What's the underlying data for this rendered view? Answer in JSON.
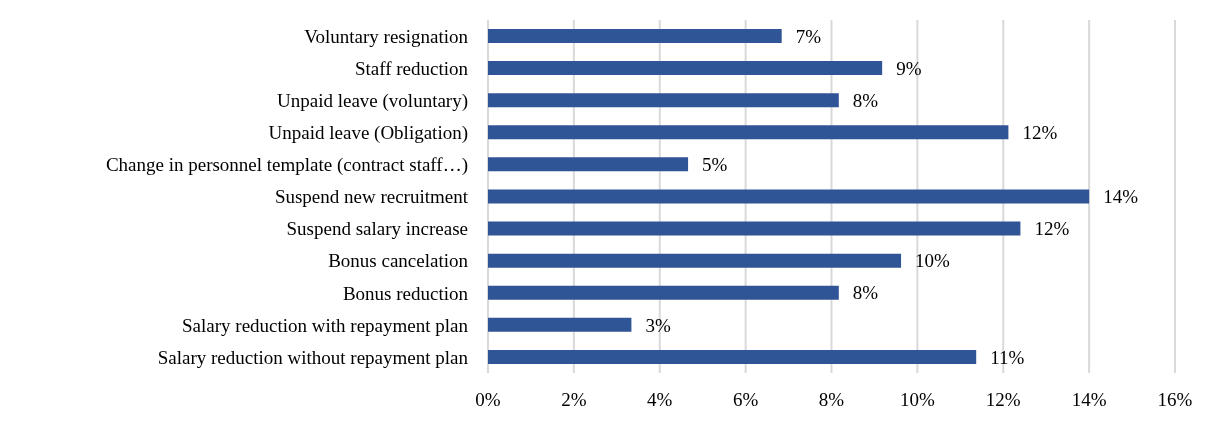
{
  "chart_data": {
    "type": "bar",
    "orientation": "horizontal",
    "categories": [
      "Voluntary resignation",
      "Staff reduction",
      "Unpaid leave (voluntary)",
      "Unpaid leave (Obligation)",
      "Change in personnel template (contract staff…)",
      "Suspend new recruitment",
      "Suspend salary increase ",
      "Bonus cancelation",
      "Bonus reduction",
      "Salary reduction with repayment plan",
      "Salary reduction without repayment plan"
    ],
    "values": [
      6.84,
      9.18,
      8.17,
      12.12,
      4.66,
      14.0,
      12.4,
      9.62,
      8.17,
      3.34,
      11.37
    ],
    "value_labels": [
      "7%",
      "9%",
      "8%",
      "12%",
      "5%",
      "14%",
      "12%",
      "10%",
      "8%",
      "3%",
      "11%"
    ],
    "color": "#2f5597",
    "xlim": [
      0,
      16
    ],
    "xticks": [
      {
        "value": 0,
        "label": "0%"
      },
      {
        "value": 2,
        "label": "2%"
      },
      {
        "value": 4,
        "label": "4%"
      },
      {
        "value": 6,
        "label": "6%"
      },
      {
        "value": 8,
        "label": "8%"
      },
      {
        "value": 10,
        "label": "10%"
      },
      {
        "value": 12,
        "label": "12%"
      },
      {
        "value": 14,
        "label": "14%"
      },
      {
        "value": 16,
        "label": "16%"
      }
    ],
    "grid": "x",
    "legend": false
  }
}
